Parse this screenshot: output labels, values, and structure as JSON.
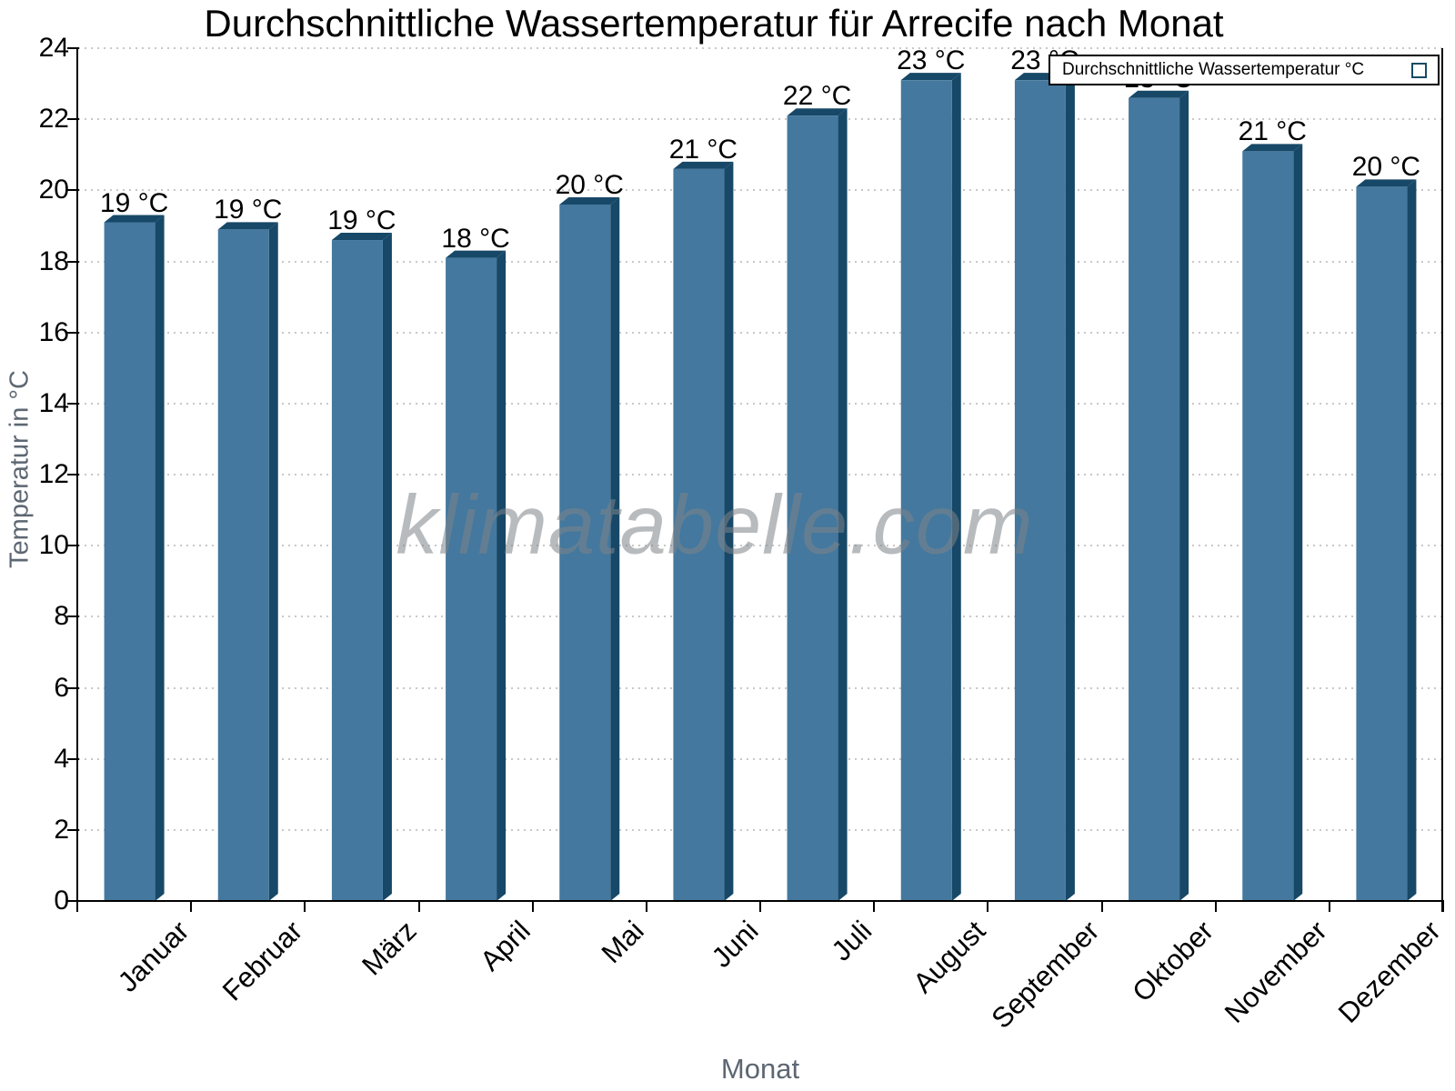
{
  "chart_data": {
    "type": "bar",
    "title": "Durchschnittliche Wassertemperatur für Arrecife nach Monat",
    "xlabel": "Monat",
    "ylabel": "Temperatur in °C",
    "categories": [
      "Januar",
      "Februar",
      "März",
      "April",
      "Mai",
      "Juni",
      "Juli",
      "August",
      "September",
      "Oktober",
      "November",
      "Dezember"
    ],
    "series": [
      {
        "name": "Durchschnittliche Wassertemperatur °C",
        "values": [
          19.1,
          18.9,
          18.6,
          18.1,
          19.6,
          20.6,
          22.1,
          23.1,
          23.1,
          22.6,
          21.1,
          20.1
        ],
        "labels": [
          "19 °C",
          "19 °C",
          "19 °C",
          "18 °C",
          "20 °C",
          "21 °C",
          "22 °C",
          "23 °C",
          "23 °C",
          "23 °C",
          "21 °C",
          "20 °C"
        ]
      }
    ],
    "ylim": [
      0,
      24
    ],
    "ytick_step": 2,
    "grid": "horizontal-dotted",
    "legend_position": "top-right",
    "watermark": "klimatabelle.com"
  },
  "colors": {
    "bar_face": "#44789e",
    "bar_edge": "#174867",
    "grid": "#c8c8c8",
    "axis": "#000000",
    "axis_title_gray": "#5d6772"
  },
  "legend": {
    "label": "Durchschnittliche Wassertemperatur °C"
  }
}
